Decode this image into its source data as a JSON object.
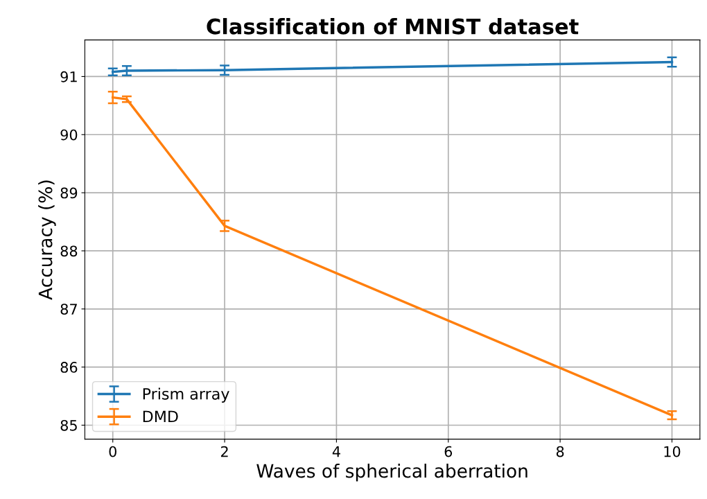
{
  "chart_data": {
    "type": "line",
    "title": "Classification of MNIST dataset",
    "xlabel": "Waves of spherical aberration",
    "ylabel": "Accuracy (%)",
    "x": [
      0,
      0.25,
      2,
      10
    ],
    "series": [
      {
        "name": "Prism array",
        "color": "#1f77b4",
        "values": [
          91.08,
          91.1,
          91.11,
          91.25
        ],
        "errors": [
          0.06,
          0.08,
          0.08,
          0.08
        ]
      },
      {
        "name": "DMD",
        "color": "#ff7f0e",
        "values": [
          90.64,
          90.61,
          88.43,
          85.17
        ],
        "errors": [
          0.1,
          0.05,
          0.09,
          0.07
        ]
      }
    ],
    "xlim": [
      -0.5,
      10.5
    ],
    "xticks": [
      0,
      2,
      4,
      6,
      8,
      10
    ],
    "ylim": [
      84.76,
      91.63
    ],
    "yticks": [
      85,
      86,
      87,
      88,
      89,
      90,
      91
    ],
    "grid": true,
    "legend": "bottom left",
    "marker": "none",
    "line_style": "solid"
  }
}
